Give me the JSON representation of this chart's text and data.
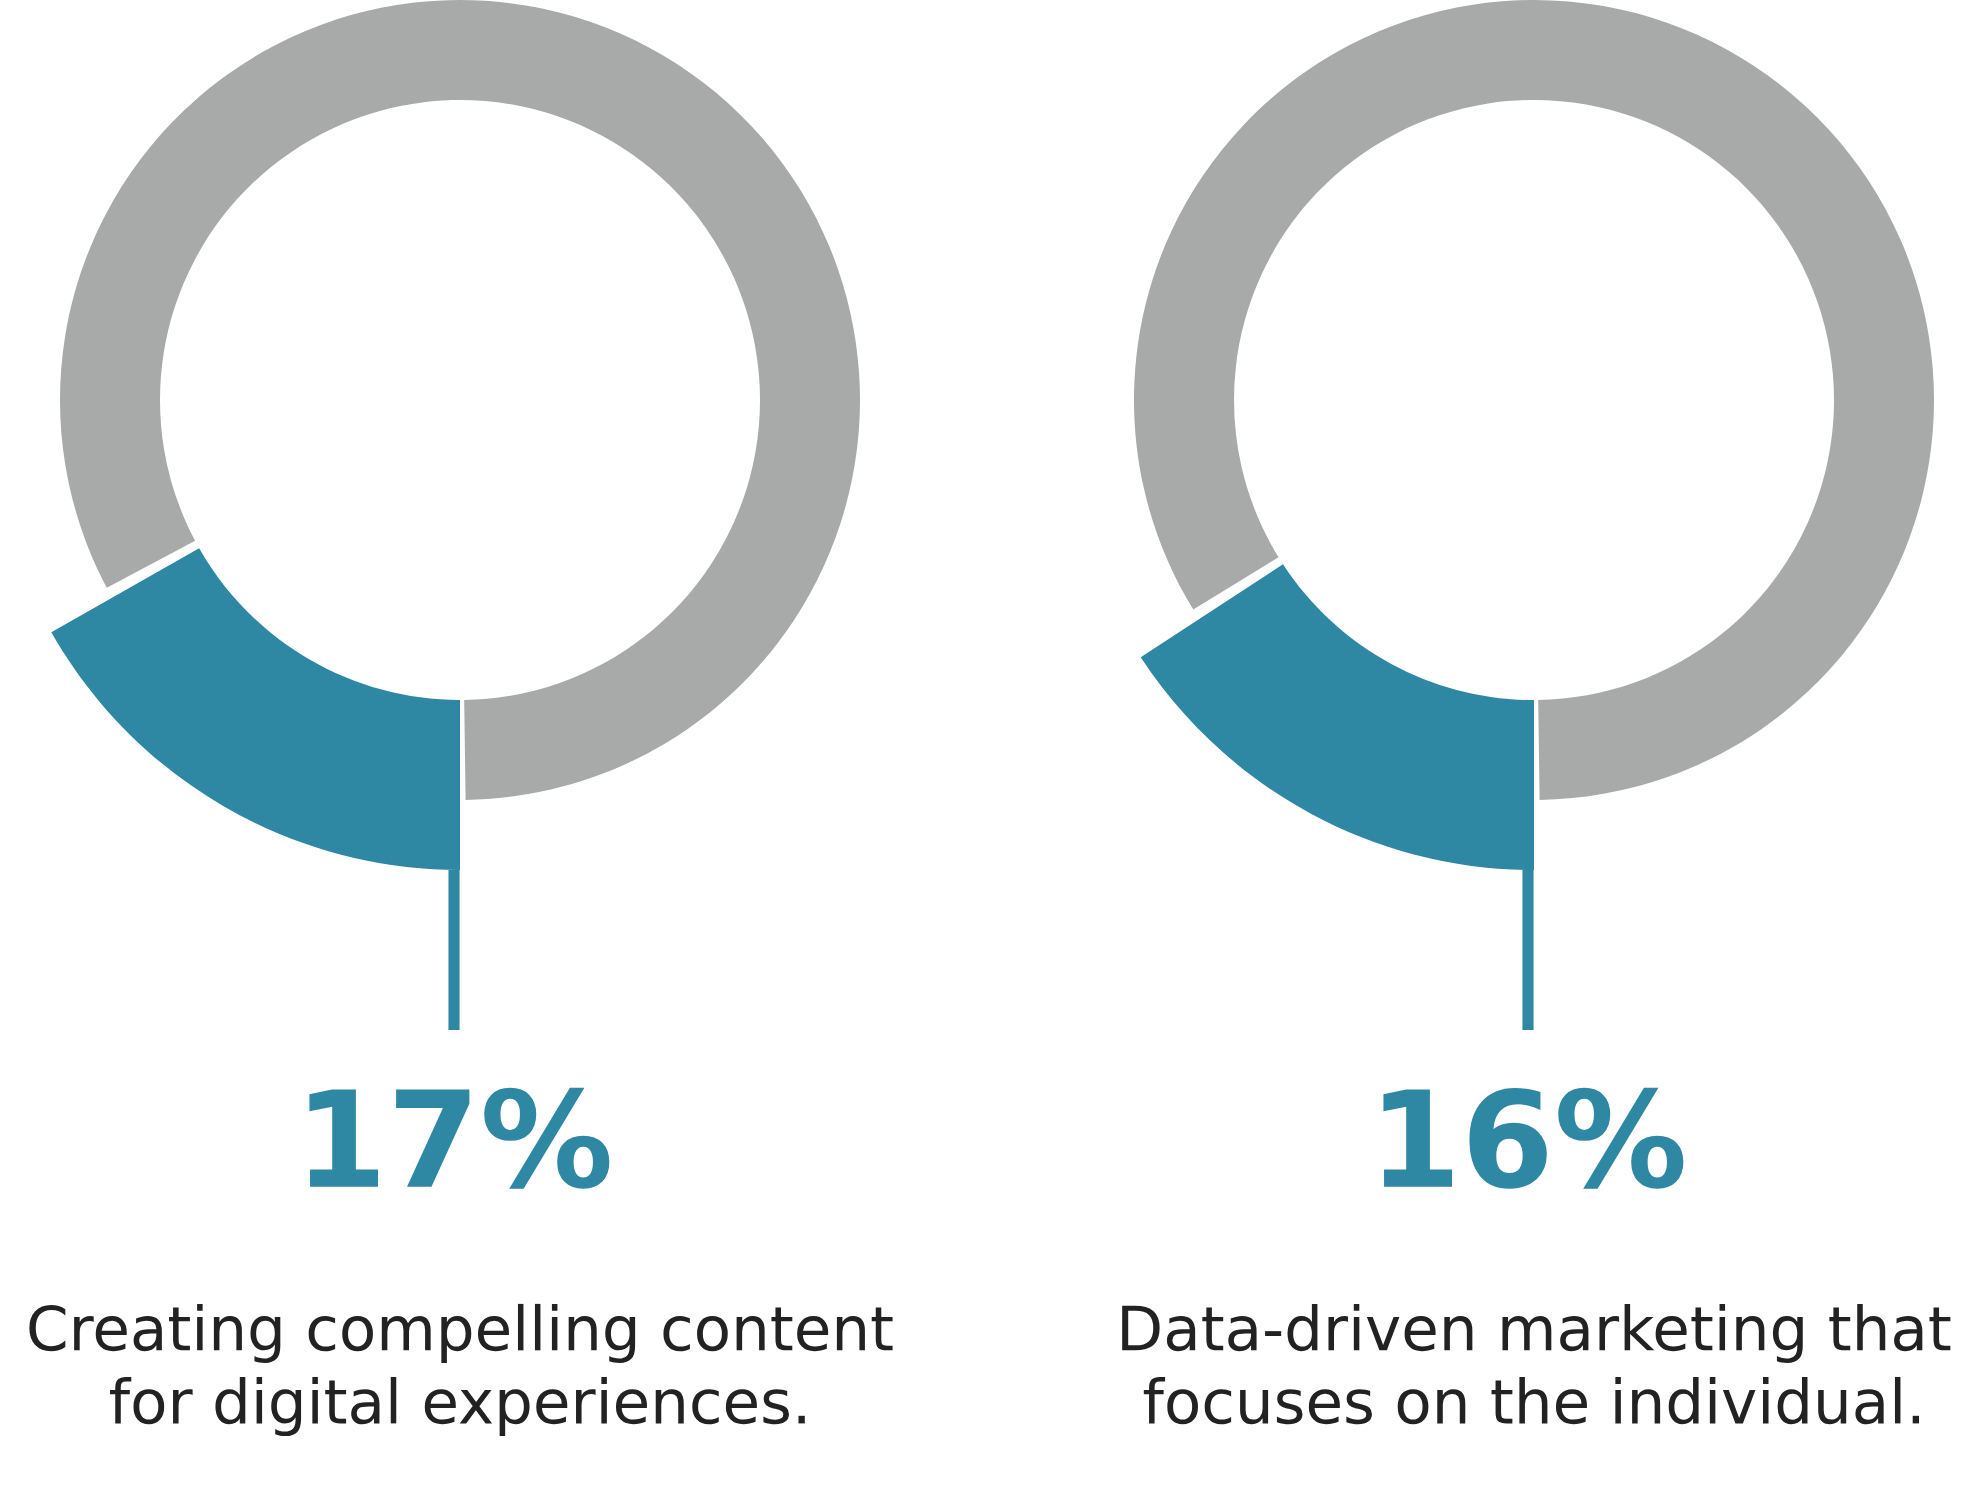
{
  "chart_data": [
    {
      "type": "donut",
      "categories": [
        null,
        null
      ],
      "values": [
        17,
        83
      ],
      "colors": [
        "#2e87a3",
        "#a8aaa9"
      ],
      "value_labels": [
        "17%",
        null
      ],
      "title": "Creating compelling content\nfor digital experiences."
    },
    {
      "type": "donut",
      "categories": [
        null,
        null
      ],
      "values": [
        16,
        84
      ],
      "colors": [
        "#2e87a3",
        "#a8aaa9"
      ],
      "value_labels": [
        "16%",
        null
      ],
      "title": "Data-driven marketing that\nfocuses on the individual."
    }
  ]
}
